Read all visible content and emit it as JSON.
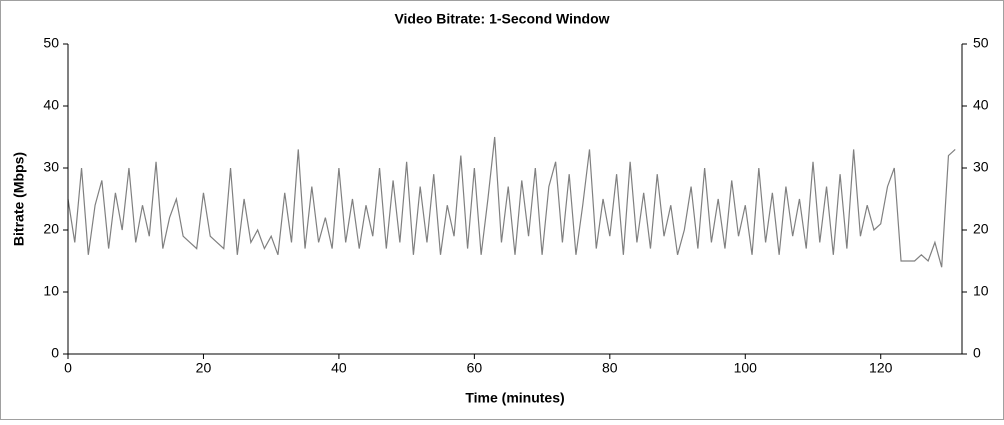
{
  "chart_data": {
    "type": "line",
    "title": "Video Bitrate: 1-Second Window",
    "x_label": "Time (minutes)",
    "y_label": "Bitrate (Mbps)",
    "x": [
      0,
      1,
      2,
      3,
      4,
      5,
      6,
      7,
      8,
      9,
      10,
      11,
      12,
      13,
      14,
      15,
      16,
      17,
      18,
      19,
      20,
      21,
      22,
      23,
      24,
      25,
      26,
      27,
      28,
      29,
      30,
      31,
      32,
      33,
      34,
      35,
      36,
      37,
      38,
      39,
      40,
      41,
      42,
      43,
      44,
      45,
      46,
      47,
      48,
      49,
      50,
      51,
      52,
      53,
      54,
      55,
      56,
      57,
      58,
      59,
      60,
      61,
      62,
      63,
      64,
      65,
      66,
      67,
      68,
      69,
      70,
      71,
      72,
      73,
      74,
      75,
      76,
      77,
      78,
      79,
      80,
      81,
      82,
      83,
      84,
      85,
      86,
      87,
      88,
      89,
      90,
      91,
      92,
      93,
      94,
      95,
      96,
      97,
      98,
      99,
      100,
      101,
      102,
      103,
      104,
      105,
      106,
      107,
      108,
      109,
      110,
      111,
      112,
      113,
      114,
      115,
      116,
      117,
      118,
      119,
      120,
      121,
      122,
      123,
      124,
      125,
      126,
      127,
      128,
      129,
      130,
      131
    ],
    "series": [
      {
        "color": "#808080",
        "values": [
          25,
          18,
          30,
          16,
          24,
          28,
          17,
          26,
          20,
          30,
          18,
          24,
          19,
          31,
          17,
          22,
          25,
          19,
          18,
          17,
          26,
          19,
          18,
          17,
          30,
          16,
          25,
          18,
          20,
          17,
          19,
          16,
          26,
          18,
          33,
          17,
          27,
          18,
          22,
          17,
          30,
          18,
          25,
          17,
          24,
          19,
          30,
          17,
          28,
          18,
          31,
          16,
          27,
          18,
          29,
          16,
          24,
          19,
          32,
          17,
          30,
          16,
          25,
          35,
          18,
          27,
          16,
          28,
          19,
          30,
          16,
          27,
          31,
          18,
          29,
          16,
          24,
          33,
          17,
          25,
          19,
          29,
          16,
          31,
          18,
          26,
          17,
          29,
          19,
          24,
          16,
          20,
          27,
          17,
          30,
          18,
          25,
          17,
          28,
          19,
          24,
          16,
          30,
          18,
          26,
          16,
          27,
          19,
          25,
          17,
          31,
          18,
          27,
          16,
          29,
          17,
          33,
          19,
          24,
          20,
          21,
          27,
          30,
          15,
          15,
          15,
          16,
          15,
          18,
          14,
          32,
          33
        ]
      }
    ],
    "xlim": [
      0,
      132
    ],
    "xticks": [
      0,
      20,
      40,
      60,
      80,
      100,
      120
    ],
    "ylim": [
      0,
      50
    ],
    "yticks": [
      0,
      10,
      20,
      30,
      40,
      50
    ],
    "y2lim": [
      0,
      50
    ],
    "y2ticks": [
      0,
      10,
      20,
      30,
      40,
      50
    ]
  }
}
